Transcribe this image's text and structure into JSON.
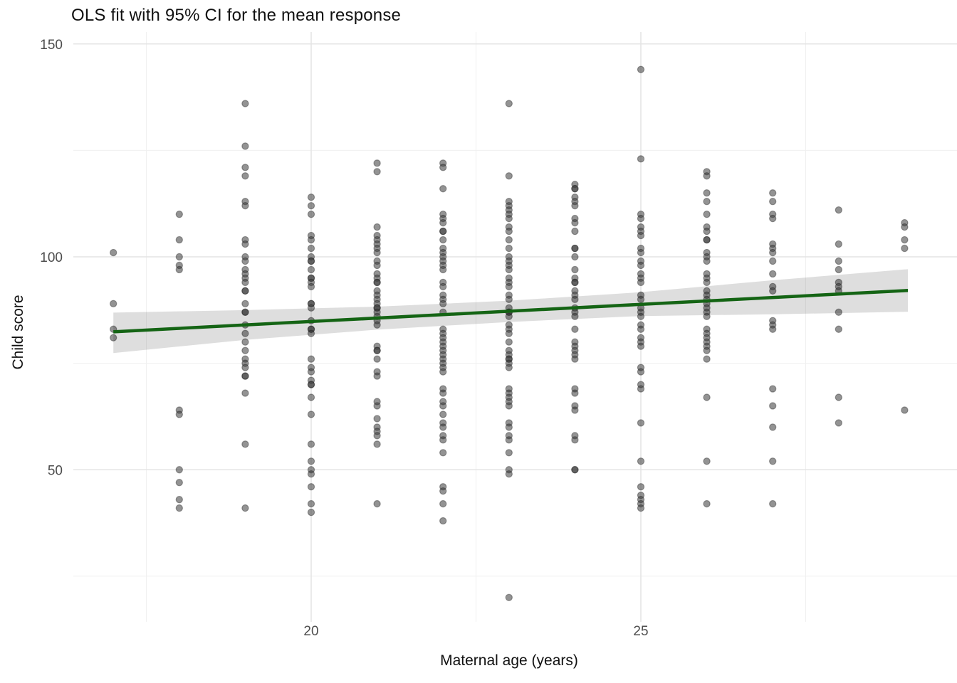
{
  "page": {
    "background": "#ffffff"
  },
  "chart_data": {
    "type": "scatter",
    "title": "OLS fit with 95% CI for the mean response",
    "xlabel": "Maternal age (years)",
    "ylabel": "Child score",
    "legend": "none",
    "grid": "major+minor",
    "xlim": [
      16.4,
      29.8
    ],
    "ylim": [
      14.3,
      152.8
    ],
    "x_ticks": [
      20,
      25
    ],
    "y_ticks": [
      50,
      100,
      150
    ],
    "x_minor_ticks": [
      17.5,
      22.5,
      27.5
    ],
    "y_minor_ticks": [
      25,
      75,
      125
    ],
    "point_color": "#3a3a3a",
    "point_opacity": 0.55,
    "line_color": "#146414",
    "ribbon_color": "rgba(0,0,0,0.13)",
    "major_grid_color": "#e4e4e4",
    "minor_grid_color": "#f0f0f0",
    "tick_label_color": "#4d4d4d",
    "columns": [
      {
        "x": 17,
        "ys": [
          101,
          89,
          83,
          81
        ]
      },
      {
        "x": 18,
        "ys": [
          110,
          104,
          100,
          98,
          97,
          64,
          63,
          50,
          47,
          43,
          41
        ]
      },
      {
        "x": 19,
        "ys": [
          136,
          126,
          121,
          119,
          113,
          112,
          104,
          103,
          100,
          99,
          97,
          96,
          95,
          94,
          92,
          92,
          89,
          87,
          87,
          84,
          82,
          80,
          78,
          76,
          75,
          74,
          72,
          72,
          68,
          56,
          41
        ]
      },
      {
        "x": 20,
        "ys": [
          114,
          112,
          110,
          105,
          104,
          102,
          100,
          99,
          99,
          97,
          95,
          95,
          94,
          93,
          89,
          89,
          88,
          85,
          83,
          83,
          82,
          76,
          74,
          73,
          71,
          70,
          70,
          67,
          63,
          56,
          52,
          50,
          49,
          46,
          42,
          40
        ]
      },
      {
        "x": 21,
        "ys": [
          122,
          120,
          107,
          105,
          104,
          103,
          102,
          101,
          99,
          98,
          96,
          95,
          94,
          94,
          92,
          91,
          90,
          89,
          88,
          88,
          87,
          86,
          85,
          84,
          79,
          78,
          78,
          76,
          73,
          72,
          66,
          65,
          62,
          60,
          59,
          58,
          56,
          42
        ]
      },
      {
        "x": 22,
        "ys": [
          122,
          121,
          116,
          110,
          109,
          108,
          106,
          106,
          104,
          102,
          101,
          100,
          99,
          98,
          97,
          94,
          93,
          91,
          90,
          89,
          87,
          83,
          82,
          81,
          80,
          79,
          78,
          77,
          76,
          75,
          74,
          73,
          69,
          68,
          66,
          65,
          63,
          61,
          60,
          58,
          57,
          54,
          46,
          45,
          42,
          38
        ]
      },
      {
        "x": 23,
        "ys": [
          136,
          119,
          113,
          112,
          111,
          110,
          109,
          107,
          106,
          104,
          102,
          100,
          99,
          98,
          97,
          95,
          94,
          93,
          91,
          90,
          88,
          87,
          87,
          86,
          84,
          83,
          82,
          80,
          78,
          77,
          76,
          76,
          75,
          74,
          69,
          68,
          67,
          66,
          65,
          61,
          60,
          58,
          57,
          54,
          50,
          49,
          20
        ]
      },
      {
        "x": 24,
        "ys": [
          117,
          116,
          116,
          114,
          113,
          112,
          109,
          108,
          106,
          102,
          102,
          100,
          97,
          95,
          94,
          94,
          92,
          91,
          90,
          88,
          87,
          86,
          83,
          80,
          79,
          78,
          77,
          76,
          69,
          68,
          65,
          64,
          58,
          57,
          50,
          50
        ]
      },
      {
        "x": 25,
        "ys": [
          144,
          123,
          110,
          109,
          107,
          106,
          105,
          102,
          101,
          99,
          98,
          96,
          95,
          94,
          91,
          90,
          88,
          87,
          86,
          84,
          83,
          81,
          80,
          79,
          74,
          73,
          70,
          69,
          61,
          52,
          46,
          44,
          43,
          42,
          41
        ]
      },
      {
        "x": 26,
        "ys": [
          120,
          119,
          115,
          113,
          110,
          107,
          106,
          104,
          104,
          101,
          100,
          99,
          96,
          95,
          94,
          92,
          91,
          90,
          89,
          88,
          87,
          86,
          83,
          82,
          81,
          80,
          79,
          78,
          76,
          67,
          52,
          42
        ]
      },
      {
        "x": 27,
        "ys": [
          115,
          113,
          110,
          109,
          103,
          102,
          101,
          99,
          96,
          93,
          92,
          85,
          84,
          83,
          69,
          65,
          60,
          52,
          42
        ]
      },
      {
        "x": 28,
        "ys": [
          111,
          103,
          99,
          97,
          94,
          93,
          92,
          87,
          83,
          67,
          61
        ]
      },
      {
        "x": 29,
        "ys": [
          108,
          107,
          104,
          102,
          64
        ]
      }
    ],
    "fit_line": {
      "label": "OLS fit",
      "x": [
        17,
        29.05
      ],
      "y": [
        82.4,
        92.1
      ]
    },
    "ci_ribbon": {
      "label": "95% CI for the mean response",
      "x": [
        17,
        19,
        21,
        23,
        25,
        27,
        29.05
      ],
      "upper": [
        86.9,
        87.5,
        88.3,
        89.7,
        91.7,
        94.5,
        97.1
      ],
      "lower": [
        77.4,
        80.5,
        82.9,
        84.7,
        86.1,
        86.5,
        87.1
      ]
    }
  }
}
